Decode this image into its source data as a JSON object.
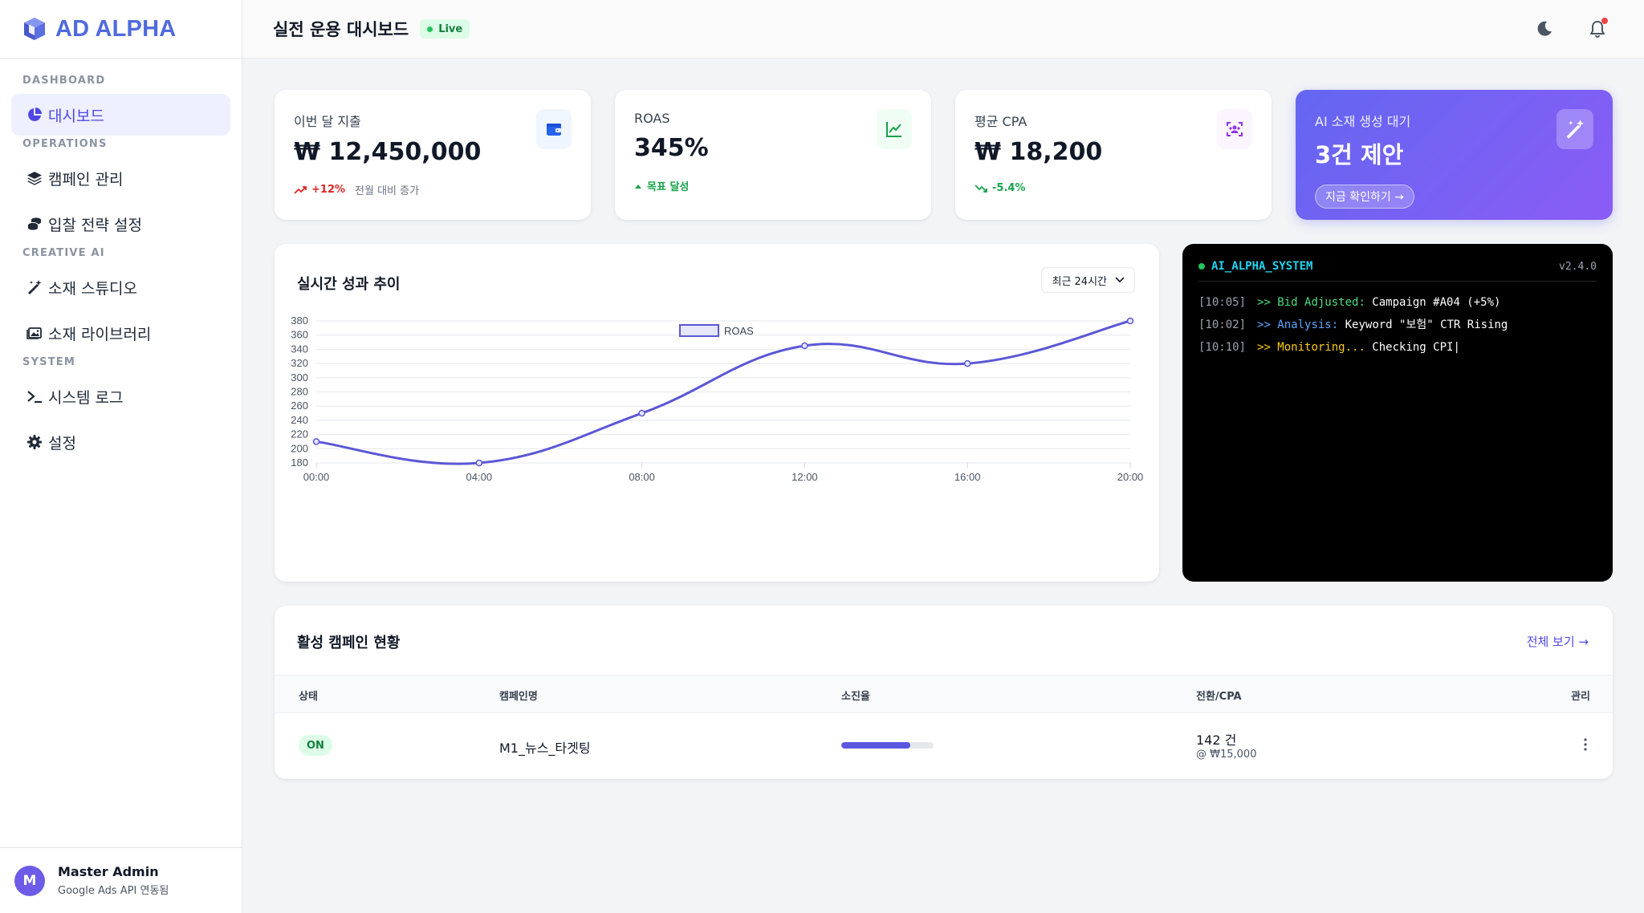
{
  "brand": {
    "name": "AD ALPHA",
    "icon": "cube-icon",
    "color": "#4f6bdc"
  },
  "sidebar": {
    "sections": [
      "DASHBOARD",
      "OPERATIONS",
      "CREATIVE AI",
      "SYSTEM"
    ],
    "items": [
      {
        "label": "대시보드",
        "icon": "pie-chart-icon",
        "active": true
      },
      {
        "label": "캠페인 관리",
        "icon": "layers-icon"
      },
      {
        "label": "입찰 전략 설정",
        "icon": "coins-icon"
      },
      {
        "label": "소재 스튜디오",
        "icon": "magic-wand-icon"
      },
      {
        "label": "소재 라이브러리",
        "icon": "images-icon"
      },
      {
        "label": "시스템 로그",
        "icon": "terminal-icon"
      },
      {
        "label": "설정",
        "icon": "gear-icon"
      }
    ],
    "user": {
      "initial": "M",
      "name": "Master Admin",
      "sub": "Google Ads API 연동됨"
    }
  },
  "header": {
    "title": "실전 운용 대시보드",
    "badge": "Live"
  },
  "stats": [
    {
      "label": "이번 달 지출",
      "value": "₩ 12,450,000",
      "delta": "+12%",
      "note": "전월 대비 증가",
      "icon": "wallet-icon",
      "accent": "#2563eb"
    },
    {
      "label": "ROAS",
      "value": "345%",
      "delta": "목표 달성",
      "icon": "trend-chart-icon",
      "accent": "#16a34a"
    },
    {
      "label": "평균 CPA",
      "value": "₩ 18,200",
      "delta": "-5.4%",
      "icon": "users-scan-icon",
      "accent": "#9333ea"
    }
  ],
  "ai_card": {
    "label": "AI 소재 생성 대기",
    "value": "3건 제안",
    "button": "지금 확인하기 →",
    "icon": "magic-wand-icon"
  },
  "chart_card": {
    "title": "실시간 성과 추이",
    "range": "최근 24시간"
  },
  "chart_data": {
    "type": "line",
    "x": [
      "00:00",
      "04:00",
      "08:00",
      "12:00",
      "16:00",
      "20:00"
    ],
    "series": [
      {
        "name": "ROAS",
        "values": [
          210,
          180,
          250,
          345,
          320,
          380
        ],
        "color": "#5b57d6"
      }
    ],
    "y_ticks": [
      180,
      200,
      220,
      240,
      260,
      280,
      300,
      320,
      340,
      360,
      380
    ],
    "ylim": [
      180,
      380
    ],
    "grid": true,
    "legend": "top-center"
  },
  "terminal": {
    "title": "AI_ALPHA_SYSTEM",
    "version": "v2.4.0",
    "logs": [
      {
        "time": "[10:05]",
        "tag": ">> Bid Adjusted:",
        "text": " Campaign #A04 (+5%)",
        "tone": "green"
      },
      {
        "time": "[10:02]",
        "tag": ">> Analysis:",
        "text": " Keyword \"보험\" CTR Rising",
        "tone": "blue"
      },
      {
        "time": "[10:10]",
        "tag": ">> Monitoring...",
        "text": " Checking CPI|",
        "tone": "yellow"
      }
    ]
  },
  "campaigns": {
    "title": "활성 캠페인 현황",
    "view_all": "전체 보기 →",
    "columns": [
      "상태",
      "캠페인명",
      "소진율",
      "전환/CPA",
      "관리"
    ],
    "rows": [
      {
        "status": "ON",
        "name": "M1_뉴스_타겟팅",
        "spend_ratio": 0.75,
        "conversions": "142 건",
        "cpa": "@ ₩15,000"
      }
    ]
  }
}
